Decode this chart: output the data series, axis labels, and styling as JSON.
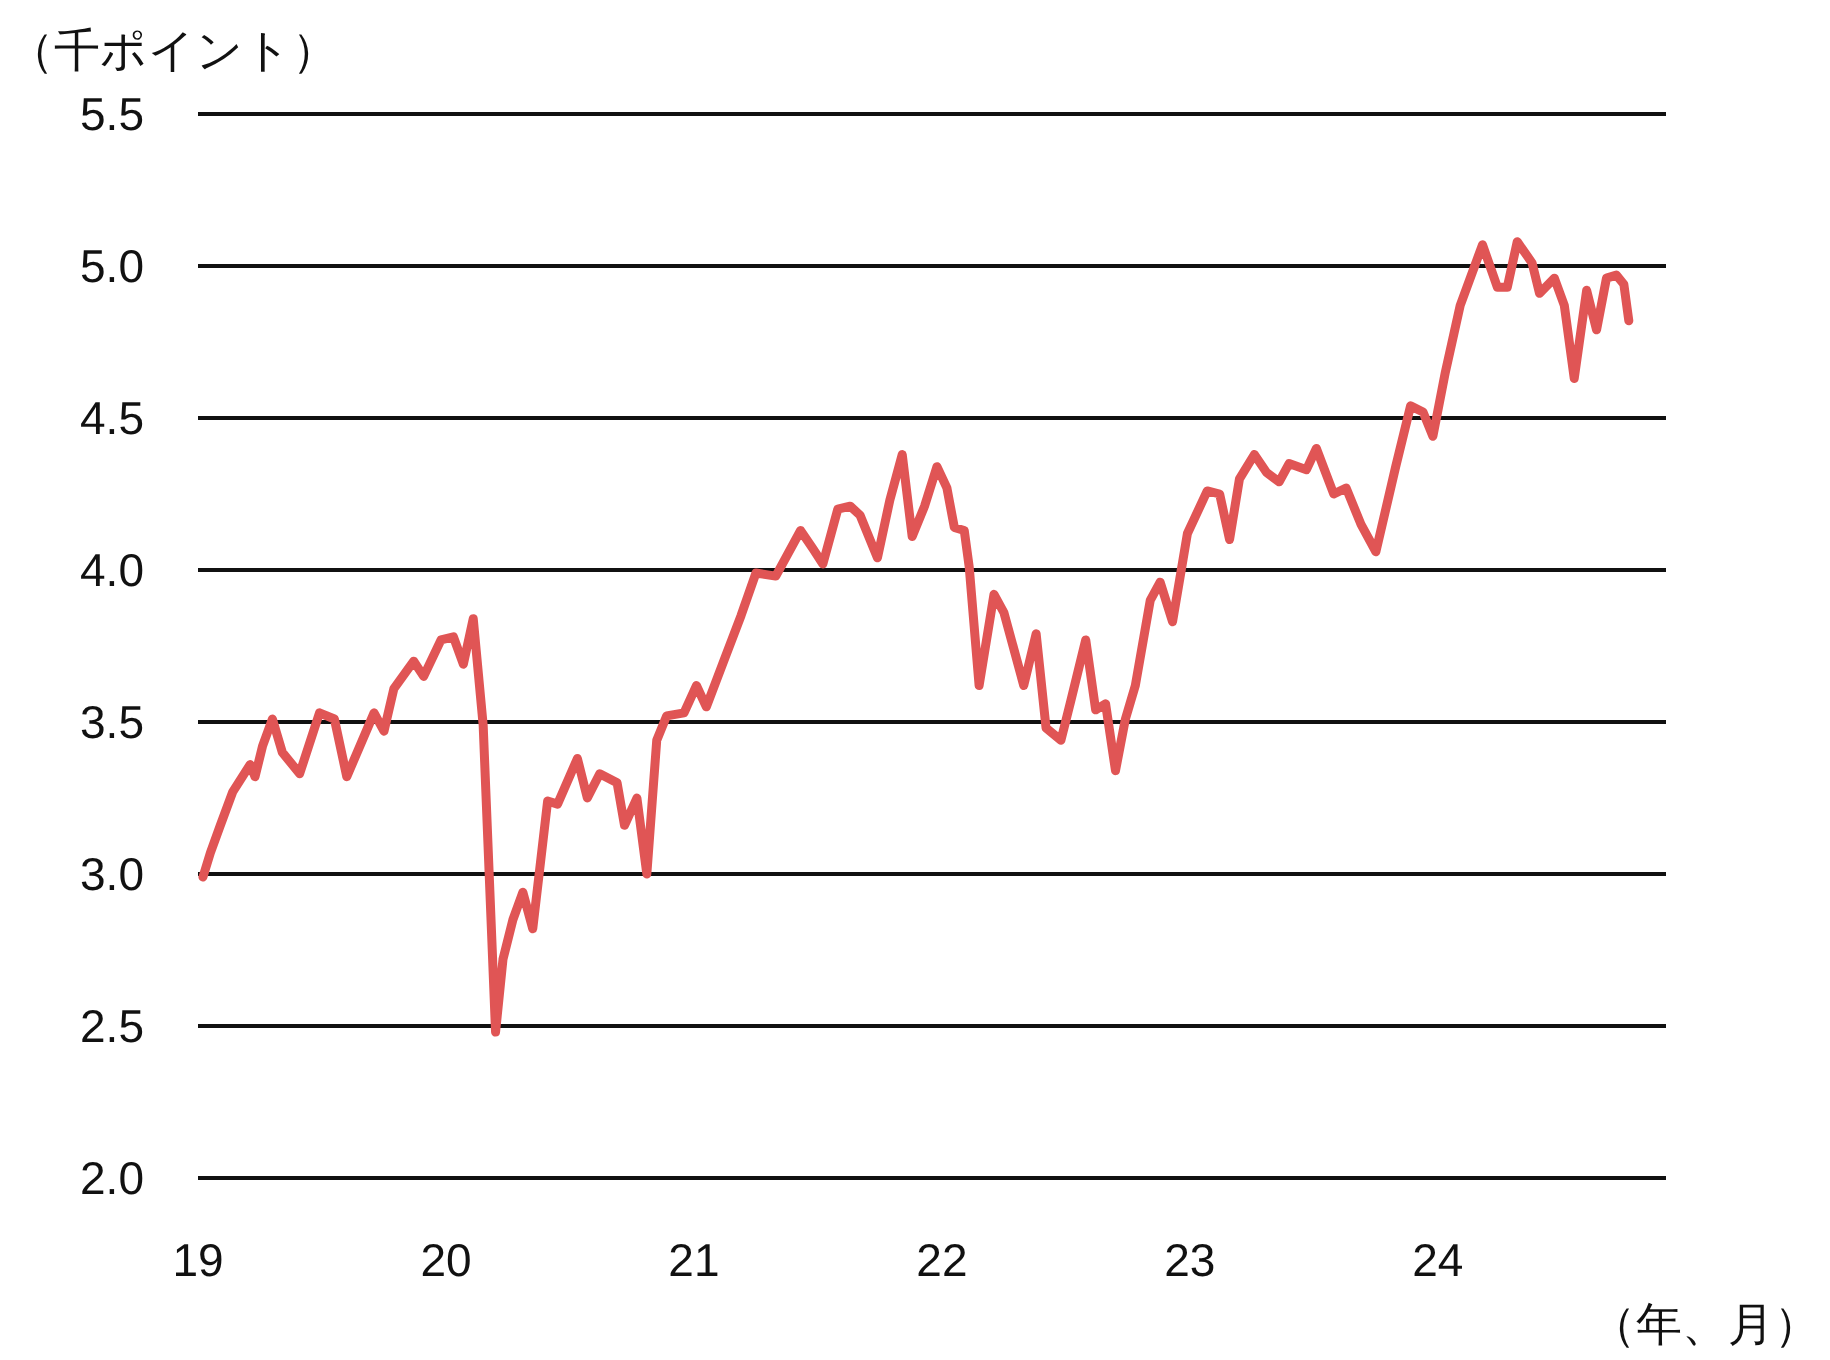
{
  "chart_data": {
    "type": "line",
    "ylabel": "（千ポイント）",
    "xlabel": "（年、月）",
    "grid": "y",
    "xlim": [
      2019,
      2024.92
    ],
    "ylim": [
      2.0,
      5.5
    ],
    "xticks": [
      {
        "value": 2019,
        "label": "19"
      },
      {
        "value": 2020,
        "label": "20"
      },
      {
        "value": 2021,
        "label": "21"
      },
      {
        "value": 2022,
        "label": "22"
      },
      {
        "value": 2023,
        "label": "23"
      },
      {
        "value": 2024,
        "label": "24"
      }
    ],
    "yticks": [
      {
        "value": 2.0,
        "label": "2.0"
      },
      {
        "value": 2.5,
        "label": "2.5"
      },
      {
        "value": 3.0,
        "label": "3.0"
      },
      {
        "value": 3.5,
        "label": "3.5"
      },
      {
        "value": 4.0,
        "label": "4.0"
      },
      {
        "value": 4.5,
        "label": "4.5"
      },
      {
        "value": 5.0,
        "label": "5.0"
      },
      {
        "value": 5.5,
        "label": "5.5"
      }
    ],
    "series": [
      {
        "color": "#e05555",
        "x": [
          2019.02,
          2019.05,
          2019.09,
          2019.14,
          2019.21,
          2019.23,
          2019.26,
          2019.3,
          2019.34,
          2019.41,
          2019.49,
          2019.55,
          2019.6,
          2019.71,
          2019.75,
          2019.79,
          2019.87,
          2019.91,
          2019.98,
          2020.03,
          2020.07,
          2020.11,
          2020.15,
          2020.2,
          2020.23,
          2020.27,
          2020.31,
          2020.35,
          2020.41,
          2020.45,
          2020.53,
          2020.57,
          2020.62,
          2020.69,
          2020.72,
          2020.77,
          2020.81,
          2020.85,
          2020.89,
          2020.96,
          2021.01,
          2021.05,
          2021.12,
          2021.19,
          2021.25,
          2021.33,
          2021.43,
          2021.48,
          2021.52,
          2021.58,
          2021.63,
          2021.67,
          2021.74,
          2021.79,
          2021.84,
          2021.88,
          2021.93,
          2021.98,
          2022.02,
          2022.05,
          2022.09,
          2022.11,
          2022.15,
          2022.21,
          2022.25,
          2022.33,
          2022.38,
          2022.42,
          2022.48,
          2022.52,
          2022.58,
          2022.62,
          2022.66,
          2022.7,
          2022.74,
          2022.78,
          2022.84,
          2022.88,
          2022.93,
          2022.99,
          2023.07,
          2023.12,
          2023.16,
          2023.2,
          2023.26,
          2023.31,
          2023.36,
          2023.4,
          2023.47,
          2023.51,
          2023.58,
          2023.63,
          2023.69,
          2023.75,
          2023.83,
          2023.89,
          2023.94,
          2023.98,
          2024.03,
          2024.09,
          2024.18,
          2024.24,
          2024.28,
          2024.32,
          2024.38,
          2024.41,
          2024.47,
          2024.51,
          2024.55,
          2024.6,
          2024.64,
          2024.68,
          2024.72,
          2024.75,
          2024.77
        ],
        "values": [
          2.99,
          3.07,
          3.16,
          3.27,
          3.36,
          3.32,
          3.42,
          3.51,
          3.4,
          3.33,
          3.53,
          3.51,
          3.32,
          3.53,
          3.47,
          3.61,
          3.7,
          3.65,
          3.77,
          3.78,
          3.69,
          3.84,
          3.49,
          2.48,
          2.72,
          2.85,
          2.94,
          2.82,
          3.24,
          3.23,
          3.38,
          3.25,
          3.33,
          3.3,
          3.16,
          3.25,
          3.0,
          3.44,
          3.52,
          3.53,
          3.62,
          3.55,
          3.7,
          3.85,
          3.99,
          3.98,
          4.13,
          4.07,
          4.02,
          4.2,
          4.21,
          4.18,
          4.04,
          4.23,
          4.38,
          4.11,
          4.21,
          4.34,
          4.27,
          4.14,
          4.13,
          4.01,
          3.62,
          3.92,
          3.86,
          3.62,
          3.79,
          3.48,
          3.44,
          3.57,
          3.77,
          3.54,
          3.56,
          3.34,
          3.51,
          3.62,
          3.9,
          3.96,
          3.83,
          4.12,
          4.26,
          4.25,
          4.1,
          4.3,
          4.38,
          4.32,
          4.29,
          4.35,
          4.33,
          4.4,
          4.25,
          4.27,
          4.15,
          4.06,
          4.34,
          4.54,
          4.52,
          4.44,
          4.65,
          4.87,
          5.07,
          4.93,
          4.93,
          5.08,
          5.01,
          4.91,
          4.96,
          4.87,
          4.63,
          4.92,
          4.79,
          4.96,
          4.97,
          4.94,
          4.82
        ]
      }
    ]
  }
}
